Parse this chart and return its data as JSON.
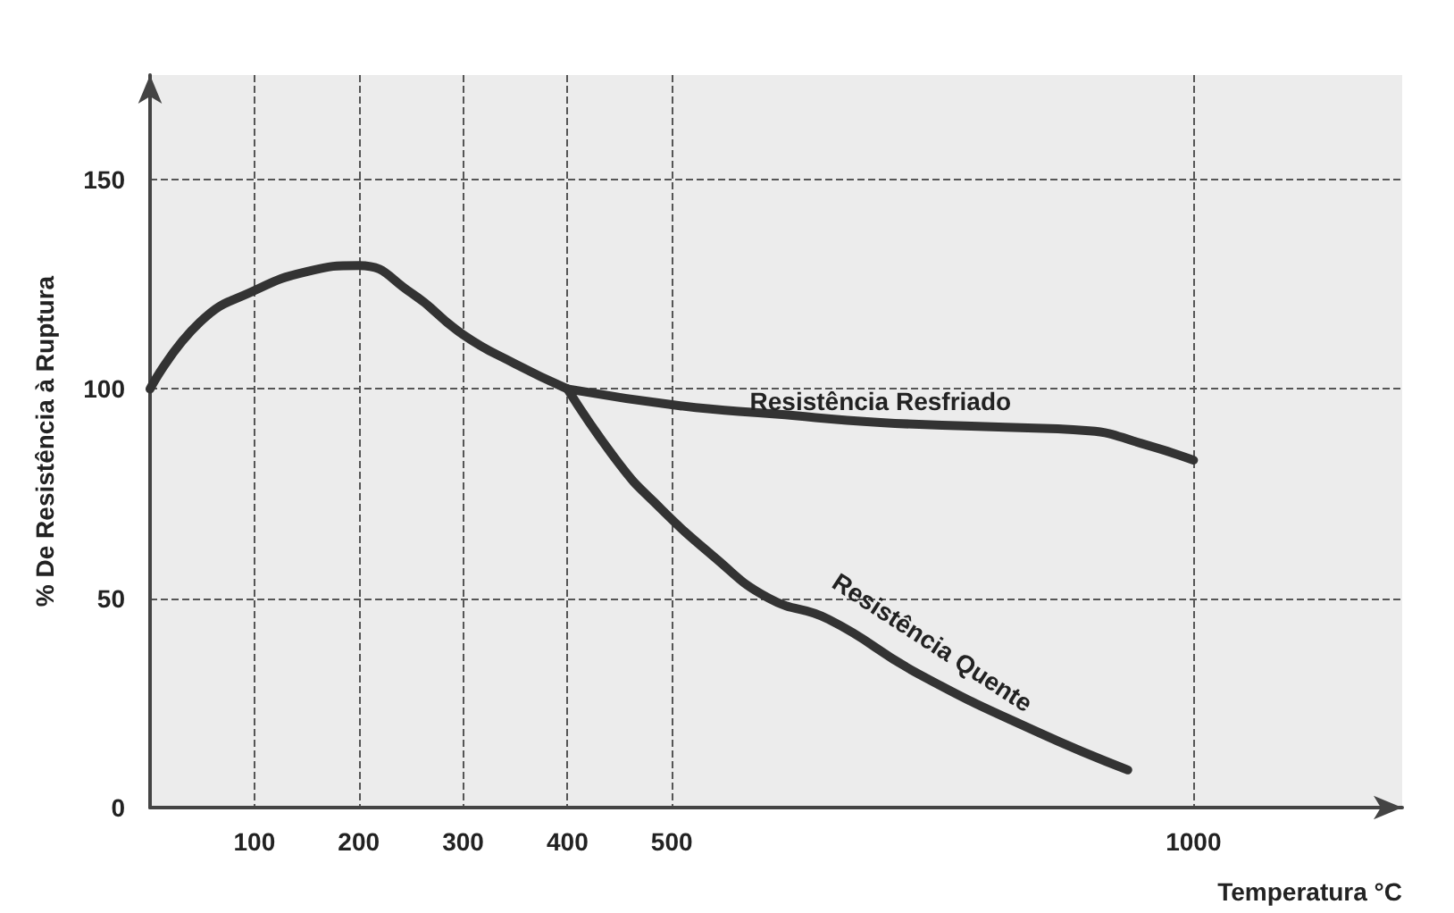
{
  "chart_data": {
    "type": "line",
    "xlabel": "Temperatura °C",
    "ylabel": "% De Resistência à Ruptura",
    "xlim": [
      0,
      1200
    ],
    "ylim": [
      0,
      175
    ],
    "xticks": [
      100,
      200,
      300,
      400,
      500,
      1000
    ],
    "yticks": [
      0,
      50,
      100,
      150
    ],
    "grid": true,
    "marker": "none",
    "line_style": "solid",
    "series": [
      {
        "color": "#333333",
        "x": [
          0,
          48,
          100,
          150,
          200,
          250,
          300,
          350,
          400
        ],
        "values": [
          100,
          116,
          123.5,
          128,
          129.5,
          123,
          113,
          106,
          100
        ]
      },
      {
        "name": "Resistência Resfriado",
        "color": "#333333",
        "x": [
          400,
          508,
          600,
          700,
          800,
          900,
          950,
          1000
        ],
        "values": [
          100,
          96,
          94,
          92,
          91,
          90,
          87,
          83
        ]
      },
      {
        "name": "Resistência Quente",
        "color": "#333333",
        "x": [
          400,
          450,
          483,
          540,
          593,
          650,
          736,
          851,
          937
        ],
        "values": [
          100,
          82,
          73,
          60,
          50,
          45,
          32,
          18,
          9
        ]
      }
    ]
  }
}
